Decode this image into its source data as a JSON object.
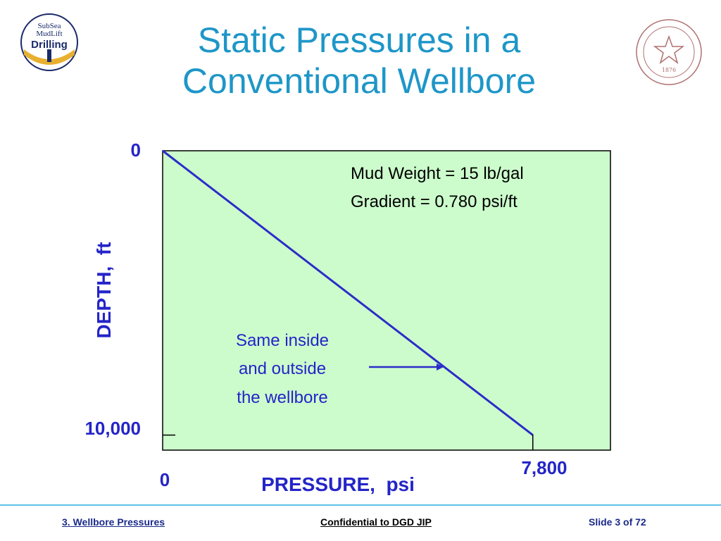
{
  "slide": {
    "title_line1": "Static Pressures in a",
    "title_line2": "Conventional Wellbore",
    "logo_left": {
      "name": "subsea-mudlift-drilling-logo",
      "text_line1": "SubSea",
      "text_line2": "MudLift",
      "text_line3": "Drilling"
    },
    "seal_right": {
      "name": "texas-am-university-seal",
      "text": "TEXAS A&M UNIVERSITY",
      "year": "1876"
    },
    "footer": {
      "left": "3. Wellbore Pressures",
      "center": "Confidential to DGD JIP",
      "right": "Slide 3 of 72"
    }
  },
  "chart_data": {
    "type": "line",
    "xlabel": "PRESSURE,  psi",
    "ylabel": "DEPTH,  ft",
    "x_tick_labels": [
      "0",
      "7,800"
    ],
    "y_tick_labels": [
      "0",
      "10,000"
    ],
    "xlim": [
      0,
      9436
    ],
    "ylim_inverted": [
      0,
      10531
    ],
    "series": [
      {
        "x": [
          0,
          7800
        ],
        "y": [
          0,
          10000
        ]
      }
    ],
    "annotations": {
      "mud_weight": "Mud Weight = 15 lb/gal",
      "gradient": "Gradient = 0.780 psi/ft",
      "note_line1": "Same inside",
      "note_line2": "and outside",
      "note_line3": "the wellbore"
    },
    "colors": {
      "plot_background": "#ccfccc",
      "line": "#2c2cc8",
      "label": "#2424c8",
      "title": "#1e96c8"
    },
    "grid": false,
    "legend": "none"
  }
}
